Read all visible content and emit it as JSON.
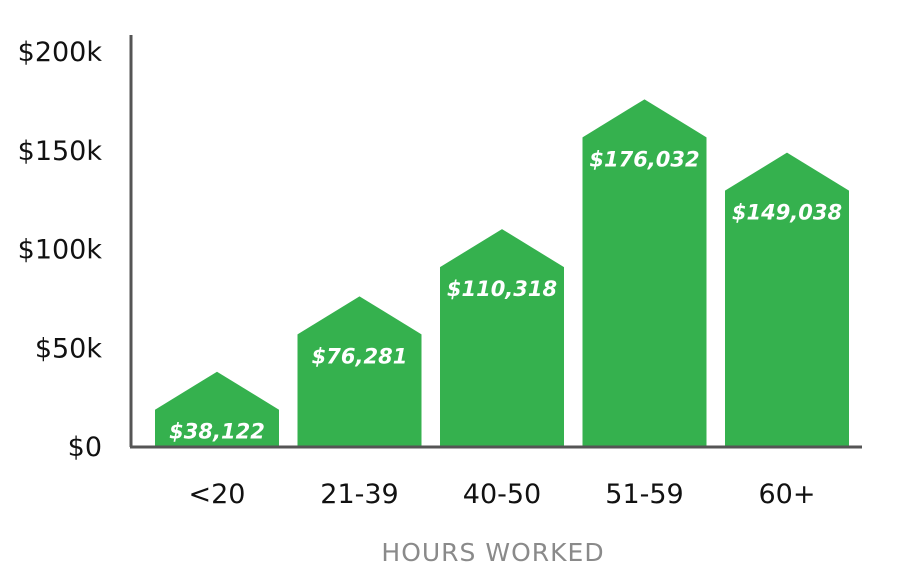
{
  "chart_data": {
    "type": "bar",
    "title": "",
    "xlabel": "HOURS WORKED",
    "ylabel": "",
    "categories": [
      "<20",
      "21-39",
      "40-50",
      "51-59",
      "60+"
    ],
    "values": [
      38122,
      76281,
      110318,
      176032,
      149038
    ],
    "data_labels": [
      "$38,122",
      "$76,281",
      "$110,318",
      "$176,032",
      "$149,038"
    ],
    "yticks": [
      0,
      50000,
      100000,
      150000,
      200000
    ],
    "ytick_labels": [
      "$0",
      "$50k",
      "$100k",
      "$150k",
      "$200k"
    ],
    "ylim": [
      0,
      200000
    ],
    "grid": false,
    "bar_shape": "house (rectangle with triangular peak)",
    "colors": {
      "bar": "#35b14e",
      "axis": "#555555",
      "data_label": "#ffffff",
      "xlabel": "#8a8a8a"
    }
  }
}
